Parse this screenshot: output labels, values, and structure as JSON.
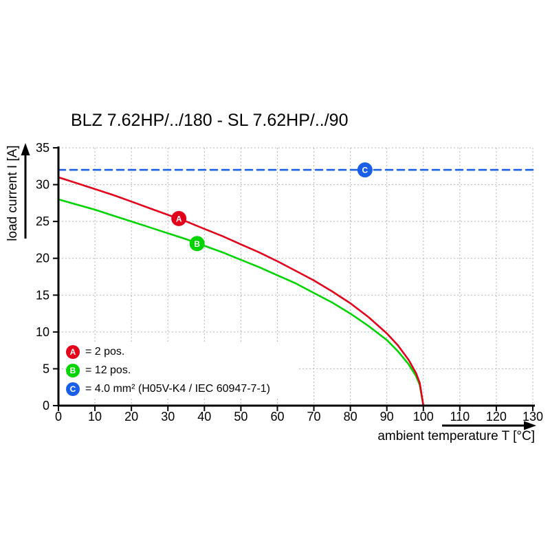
{
  "chart_data": {
    "type": "line",
    "title": "BLZ 7.62HP/../180 - SL 7.62HP/../90",
    "xlabel": "ambient temperature T [°C]",
    "ylabel": "load current I [A]",
    "xlim": [
      0,
      130
    ],
    "ylim": [
      0,
      35
    ],
    "xticks": [
      0,
      10,
      20,
      30,
      40,
      50,
      60,
      70,
      80,
      90,
      100,
      110,
      120,
      130
    ],
    "yticks": [
      0,
      5,
      10,
      15,
      20,
      25,
      30,
      35
    ],
    "grid": true,
    "legend_position": "bottom-left-inside",
    "colors": {
      "grid": "#b3b3b3",
      "axis": "#000000",
      "red": "#e2001a",
      "green": "#00d400",
      "blue": "#1a5fe8"
    },
    "series": [
      {
        "name": "C",
        "label": "4.0 mm² (H05V-K4 / IEC 60947-7-1)",
        "color": "#1a5fe8",
        "style": "dashed",
        "points": [
          [
            0,
            32
          ],
          [
            130,
            32
          ]
        ]
      },
      {
        "name": "B",
        "label": "12 pos.",
        "color": "#00d400",
        "style": "solid",
        "points": [
          [
            0,
            28
          ],
          [
            5,
            27.3
          ],
          [
            10,
            26.6
          ],
          [
            15,
            25.8
          ],
          [
            20,
            25
          ],
          [
            25,
            24.2
          ],
          [
            30,
            23.4
          ],
          [
            35,
            22.6
          ],
          [
            40,
            21.7
          ],
          [
            45,
            20.8
          ],
          [
            50,
            19.8
          ],
          [
            55,
            18.8
          ],
          [
            60,
            17.7
          ],
          [
            65,
            16.6
          ],
          [
            70,
            15.3
          ],
          [
            75,
            14
          ],
          [
            80,
            12.5
          ],
          [
            85,
            10.8
          ],
          [
            90,
            8.9
          ],
          [
            93,
            7.4
          ],
          [
            96,
            5.6
          ],
          [
            98,
            4
          ],
          [
            99,
            2.8
          ],
          [
            100,
            0
          ]
        ]
      },
      {
        "name": "A",
        "label": "2 pos.",
        "color": "#e2001a",
        "style": "solid",
        "points": [
          [
            0,
            31
          ],
          [
            5,
            30.2
          ],
          [
            10,
            29.4
          ],
          [
            15,
            28.6
          ],
          [
            20,
            27.7
          ],
          [
            25,
            26.8
          ],
          [
            30,
            25.9
          ],
          [
            35,
            25
          ],
          [
            40,
            24
          ],
          [
            45,
            23
          ],
          [
            50,
            21.9
          ],
          [
            55,
            20.8
          ],
          [
            60,
            19.6
          ],
          [
            65,
            18.3
          ],
          [
            70,
            17
          ],
          [
            75,
            15.5
          ],
          [
            80,
            13.9
          ],
          [
            85,
            12
          ],
          [
            90,
            9.8
          ],
          [
            93,
            8.2
          ],
          [
            96,
            6.2
          ],
          [
            98,
            4.4
          ],
          [
            99,
            3.1
          ],
          [
            100,
            0
          ]
        ]
      }
    ],
    "markers": [
      {
        "label": "A",
        "x": 33,
        "y": 25.4,
        "color": "#e2001a"
      },
      {
        "label": "B",
        "x": 38,
        "y": 22,
        "color": "#00d400"
      },
      {
        "label": "C",
        "x": 84,
        "y": 32,
        "color": "#1a5fe8"
      }
    ],
    "legend": [
      {
        "marker": "A",
        "color": "#e2001a",
        "text": "= 2 pos."
      },
      {
        "marker": "B",
        "color": "#00d400",
        "text": "= 12 pos."
      },
      {
        "marker": "C",
        "color": "#1a5fe8",
        "text": "= 4.0 mm² (H05V-K4 / IEC 60947-7-1)"
      }
    ]
  }
}
